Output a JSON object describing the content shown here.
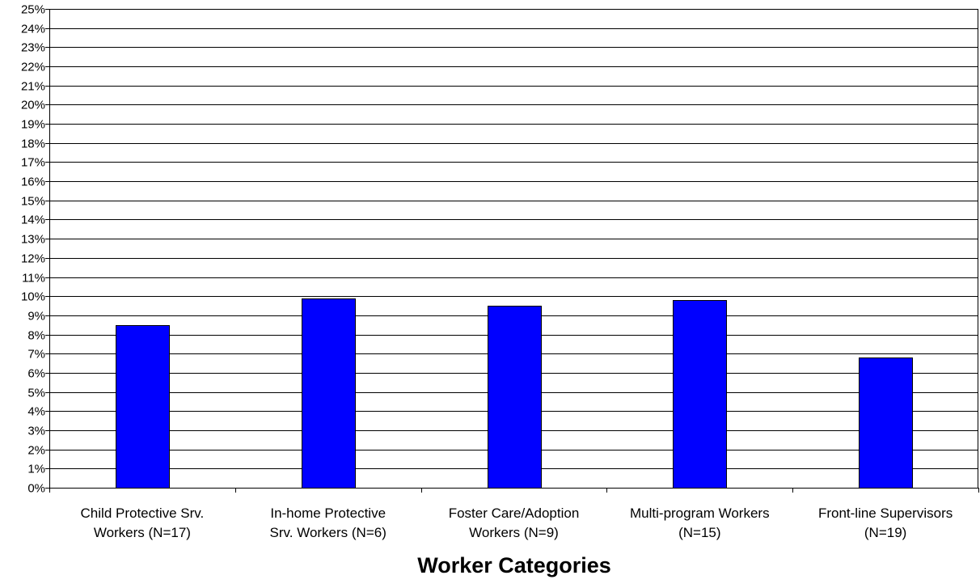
{
  "chart_data": {
    "type": "bar",
    "title": "",
    "xlabel": "Worker Categories",
    "ylabel": "",
    "ylim": [
      0,
      25
    ],
    "y_tick_step": 1,
    "y_tick_format": "{v}%",
    "grid": true,
    "legend": "none",
    "bar_color": "#0000FF",
    "categories": [
      [
        "Child Protective Srv.",
        "Workers (N=17)"
      ],
      [
        "In-home Protective",
        "Srv. Workers (N=6)"
      ],
      [
        "Foster Care/Adoption",
        "Workers (N=9)"
      ],
      [
        "Multi-program Workers",
        "(N=15)"
      ],
      [
        "Front-line Supervisors",
        "(N=19)"
      ]
    ],
    "values": [
      8.5,
      9.9,
      9.5,
      9.8,
      6.8
    ]
  }
}
